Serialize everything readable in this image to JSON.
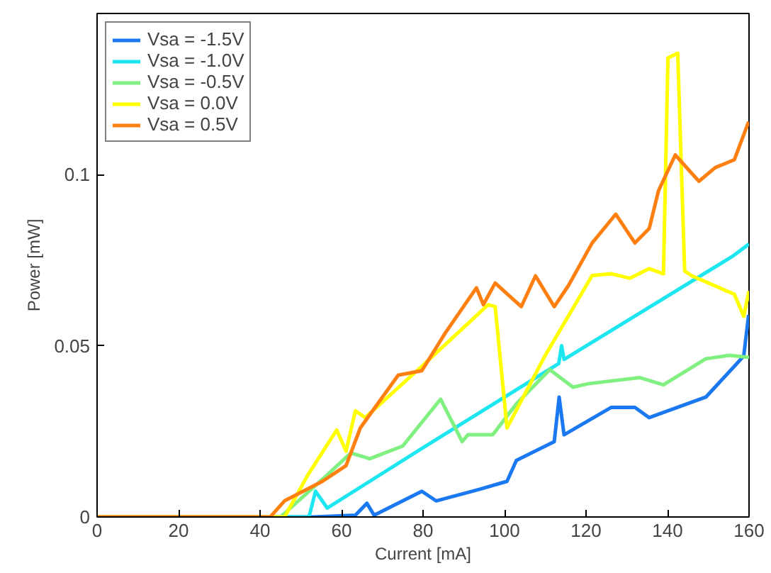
{
  "chart_data": {
    "type": "line",
    "xlabel": "Current [mA]",
    "ylabel": "Power [mW]",
    "xlim": [
      0,
      160
    ],
    "ylim": [
      0,
      0.147
    ],
    "xticks": [
      0,
      20,
      40,
      60,
      80,
      100,
      120,
      140,
      160
    ],
    "yticks": [
      0,
      0.05,
      0.1
    ],
    "grid": false,
    "legend": "top left",
    "line_style": "solid",
    "marker": "none",
    "series": [
      {
        "name": "Vsa = -1.5V",
        "color": "#1a78f0",
        "x": [
          0,
          53,
          63.4,
          66.2,
          68,
          79.7,
          83.2,
          93.6,
          100.6,
          102.9,
          112.2,
          113.4,
          114.6,
          126.2,
          132,
          135.5,
          149.4,
          156.4,
          158.7,
          159.9
        ],
        "values": [
          0,
          0,
          0.0005,
          0.004,
          0.0005,
          0.0075,
          0.0047,
          0.008,
          0.0104,
          0.0165,
          0.022,
          0.035,
          0.024,
          0.032,
          0.032,
          0.029,
          0.035,
          0.044,
          0.047,
          0.059
        ]
      },
      {
        "name": "Vsa = -1.0V",
        "color": "#1ee6f0",
        "x": [
          0,
          52,
          53.6,
          56.5,
          79.7,
          113.3,
          114,
          114.6,
          155.8,
          160
        ],
        "values": [
          0,
          0,
          0.0075,
          0.0026,
          0.02,
          0.0448,
          0.05,
          0.046,
          0.076,
          0.0797
        ]
      },
      {
        "name": "Vsa = -0.5V",
        "color": "#80f080",
        "x": [
          0,
          45,
          55.3,
          62.3,
          66.9,
          75,
          84.3,
          89.6,
          91,
          97.1,
          102.9,
          111.1,
          116.8,
          120.5,
          133.1,
          139,
          149.4,
          155.2,
          160
        ],
        "values": [
          0,
          0,
          0.011,
          0.0187,
          0.017,
          0.0207,
          0.0344,
          0.022,
          0.024,
          0.024,
          0.033,
          0.043,
          0.0379,
          0.0389,
          0.0407,
          0.0386,
          0.0462,
          0.0472,
          0.0466
        ]
      },
      {
        "name": "Vsa = 0.0V",
        "color": "#ffff00",
        "x": [
          0,
          46,
          51.8,
          58.8,
          61.1,
          63.4,
          65.8,
          79.7,
          96,
          97.7,
          100.6,
          109.9,
          121.5,
          126.2,
          130.8,
          135.5,
          139,
          140.1,
          142.5,
          144.2,
          146,
          156.4,
          158.7,
          160
        ],
        "values": [
          0,
          0,
          0.0124,
          0.0254,
          0.0192,
          0.031,
          0.029,
          0.044,
          0.062,
          0.0614,
          0.026,
          0.047,
          0.0705,
          0.071,
          0.0697,
          0.0725,
          0.071,
          0.134,
          0.1354,
          0.0718,
          0.0704,
          0.065,
          0.0586,
          0.066
        ]
      },
      {
        "name": "Vsa = 0.5V",
        "color": "#ff7f10",
        "x": [
          0,
          42.5,
          46,
          55.3,
          61.1,
          64.6,
          73.9,
          79.7,
          85.5,
          93.1,
          94.8,
          97.7,
          104.1,
          107.6,
          112.2,
          115.7,
          121.5,
          127.3,
          132,
          135.5,
          137.8,
          141.9,
          147.7,
          151.7,
          156.4,
          159.9
        ],
        "values": [
          0,
          0,
          0.0047,
          0.0104,
          0.015,
          0.026,
          0.0414,
          0.0427,
          0.0538,
          0.0669,
          0.062,
          0.0683,
          0.0614,
          0.0704,
          0.0614,
          0.0676,
          0.08,
          0.0884,
          0.08,
          0.0842,
          0.0953,
          0.1057,
          0.098,
          0.102,
          0.1043,
          0.1154
        ]
      }
    ]
  }
}
